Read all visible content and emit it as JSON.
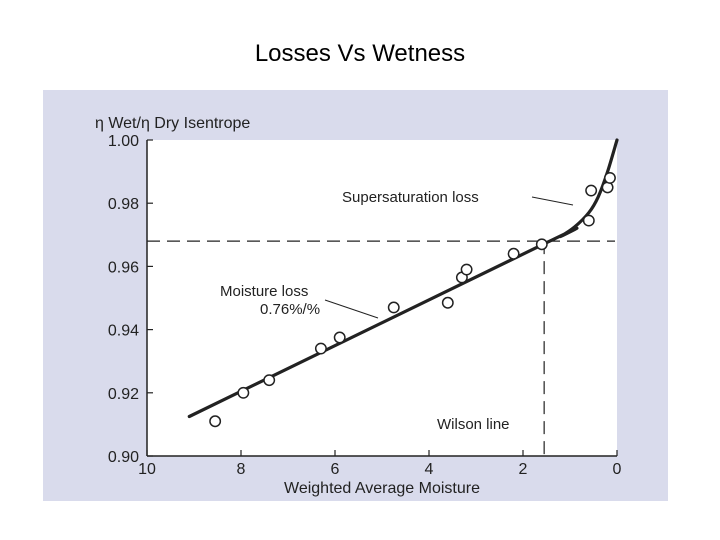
{
  "slide": {
    "title": "Losses Vs Wetness"
  },
  "chart_data": {
    "type": "scatter",
    "ylabel": "η Wet/η Dry Isentrope",
    "xlabel": "Weighted Average Moisture",
    "xlim": [
      10,
      0
    ],
    "ylim": [
      0.9,
      1.0
    ],
    "x_ticks": [
      "10",
      "8",
      "6",
      "4",
      "2",
      "0"
    ],
    "x_tick_values": [
      10,
      8,
      6,
      4,
      2,
      0
    ],
    "y_ticks": [
      "1.00",
      "0.98",
      "0.96",
      "0.94",
      "0.92",
      "0.90"
    ],
    "y_tick_values": [
      1.0,
      0.98,
      0.96,
      0.94,
      0.92,
      0.9
    ],
    "grid": false,
    "points": [
      {
        "x": 8.55,
        "y": 0.911
      },
      {
        "x": 7.95,
        "y": 0.92
      },
      {
        "x": 7.4,
        "y": 0.924
      },
      {
        "x": 6.3,
        "y": 0.934
      },
      {
        "x": 5.9,
        "y": 0.9375
      },
      {
        "x": 4.75,
        "y": 0.947
      },
      {
        "x": 3.6,
        "y": 0.9485
      },
      {
        "x": 3.3,
        "y": 0.9565
      },
      {
        "x": 3.2,
        "y": 0.959
      },
      {
        "x": 2.2,
        "y": 0.964
      },
      {
        "x": 1.6,
        "y": 0.967
      },
      {
        "x": 0.6,
        "y": 0.9745
      },
      {
        "x": 0.55,
        "y": 0.984
      },
      {
        "x": 0.2,
        "y": 0.985
      },
      {
        "x": 0.15,
        "y": 0.988
      }
    ],
    "fit_curve": [
      {
        "x": 9.1,
        "y": 0.9125
      },
      {
        "x": 1.5,
        "y": 0.9675
      },
      {
        "x": 1.2,
        "y": 0.9695
      },
      {
        "x": 0.9,
        "y": 0.9725
      },
      {
        "x": 0.6,
        "y": 0.977
      },
      {
        "x": 0.4,
        "y": 0.982
      },
      {
        "x": 0.2,
        "y": 0.99
      },
      {
        "x": 0.0,
        "y": 1.0
      }
    ],
    "wilson_line": {
      "x": 1.55,
      "y": 0.968
    },
    "annotations": {
      "supersaturation": "Supersaturation loss",
      "moisture_line1": "Moisture loss",
      "moisture_line2": "0.76%/%",
      "wilson": "Wilson line"
    },
    "colors": {
      "panel": "#d9dbec",
      "plot_bg": "#ffffff",
      "ink": "#222222"
    }
  }
}
